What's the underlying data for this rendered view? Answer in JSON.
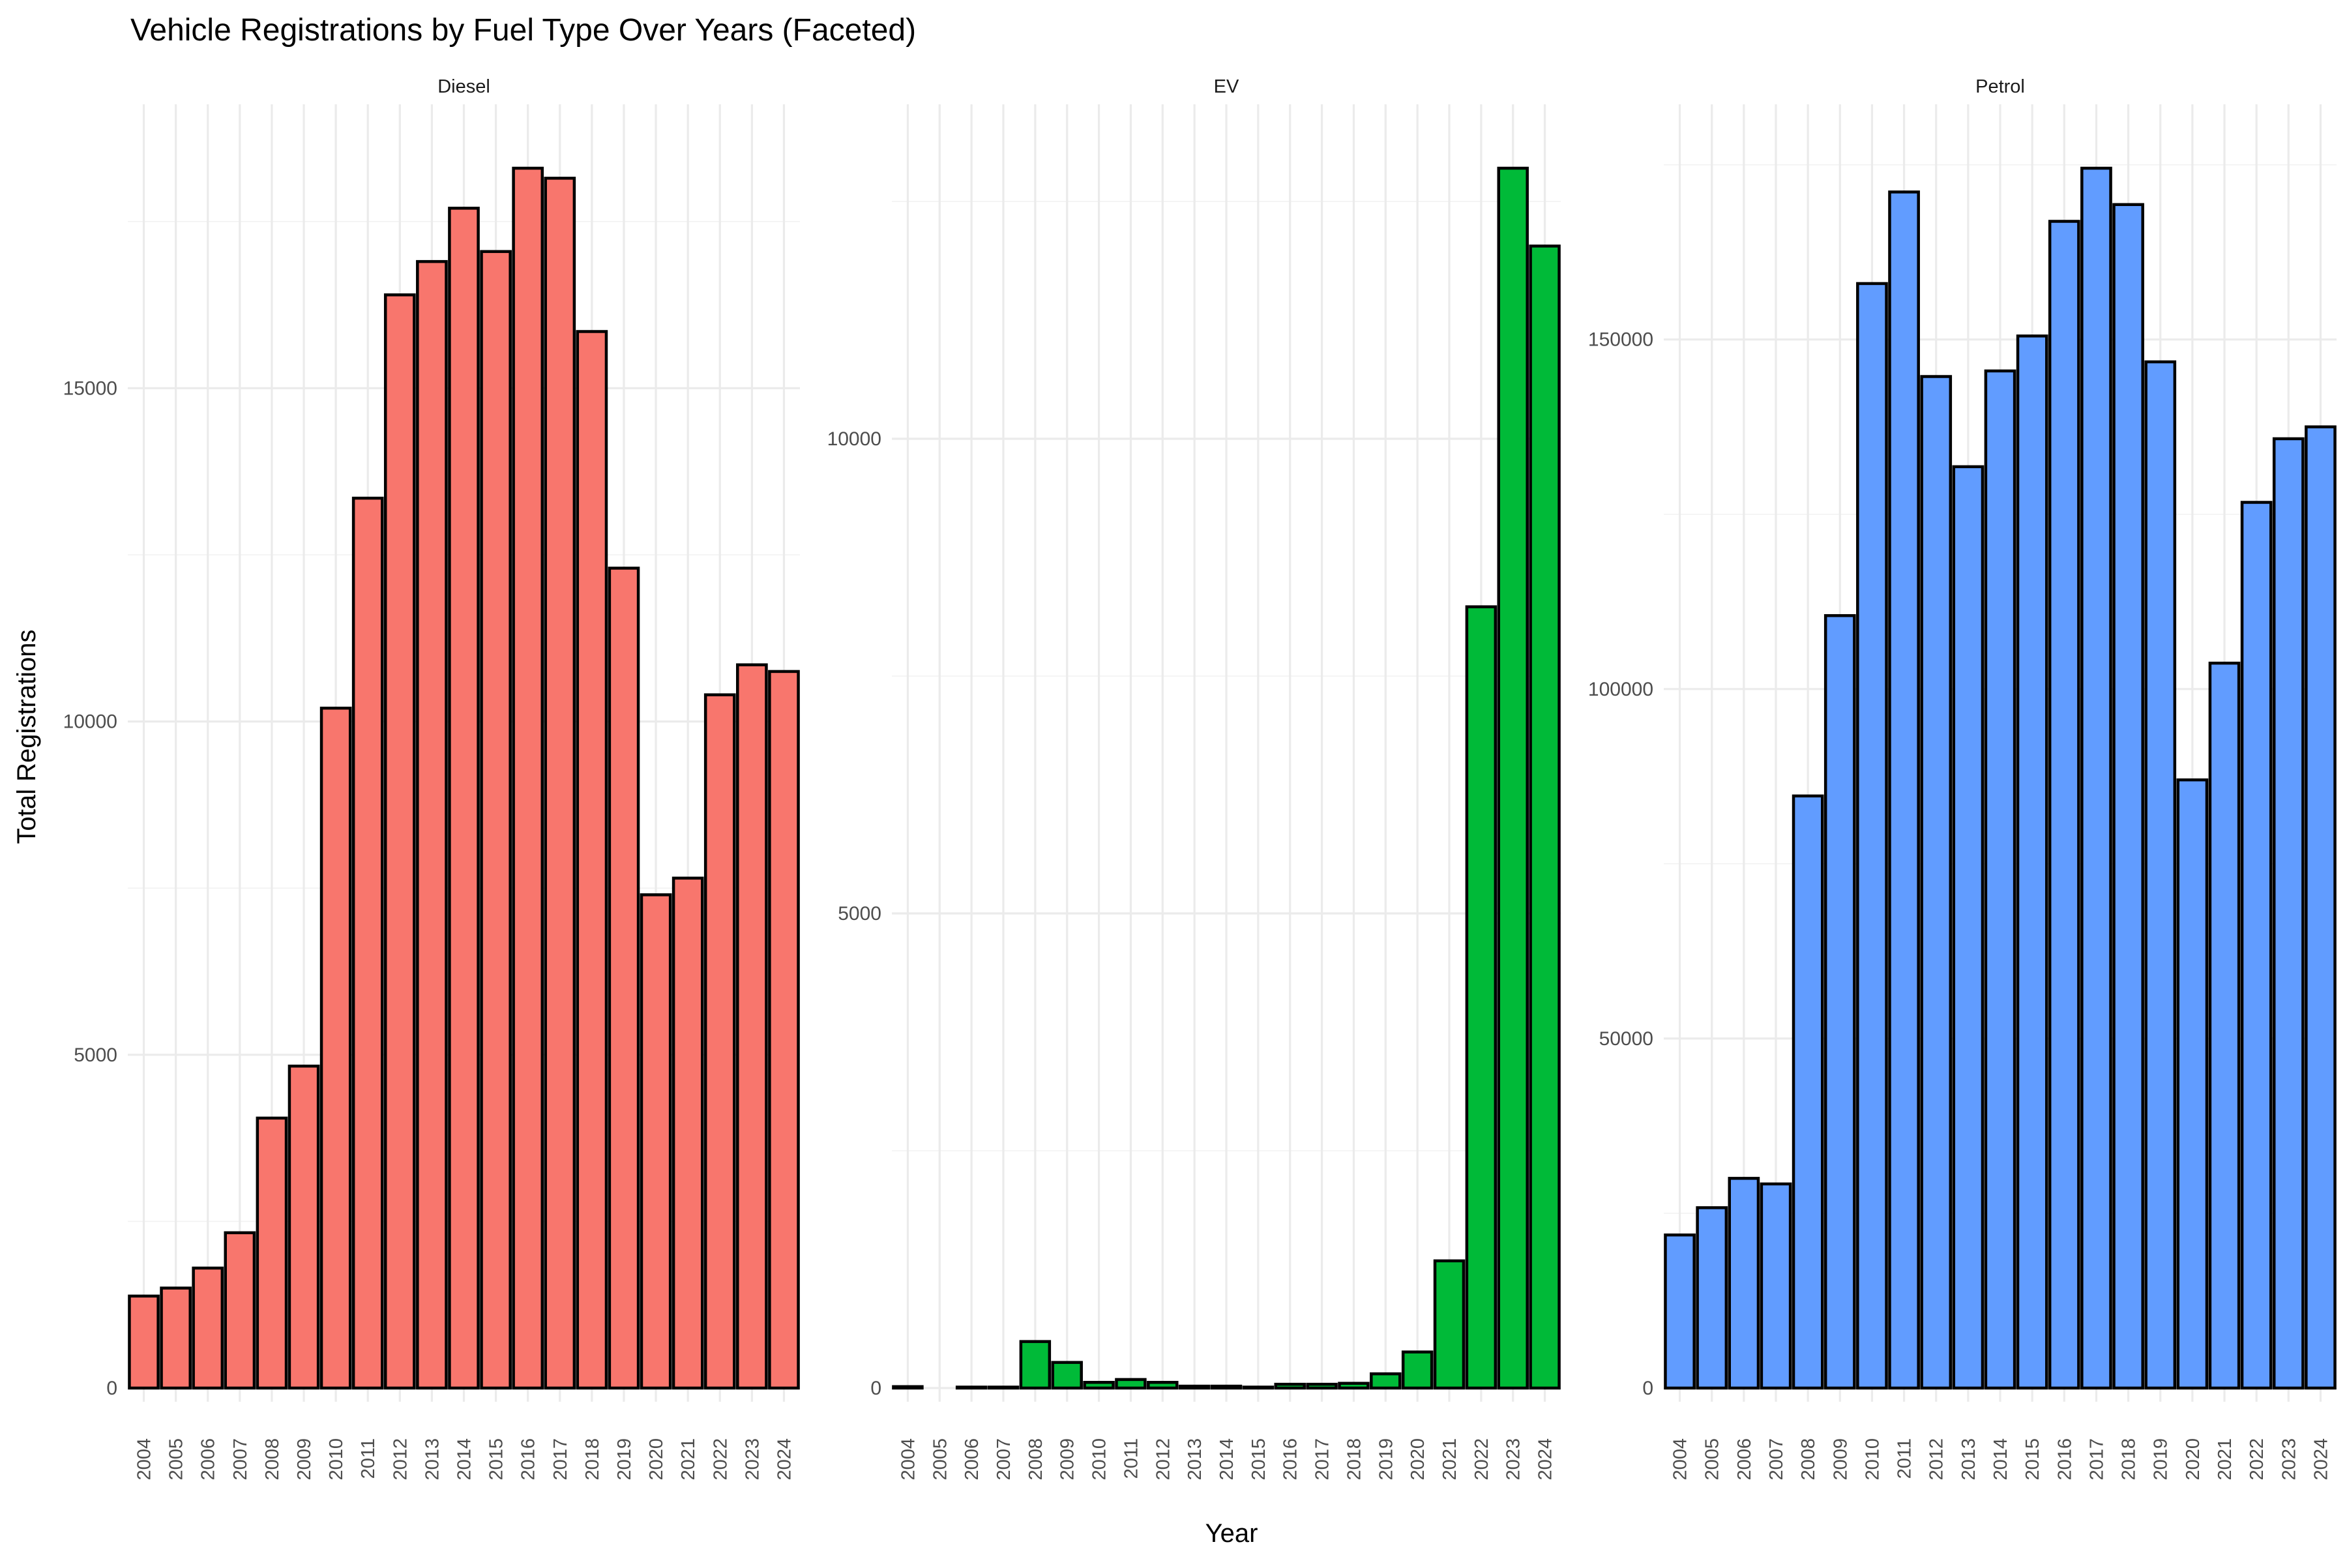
{
  "chart_data": {
    "type": "bar",
    "title": "Vehicle Registrations by Fuel Type Over Years (Faceted)",
    "xlabel": "Year",
    "ylabel": "Total Registrations",
    "categories": [
      "2004",
      "2005",
      "2006",
      "2007",
      "2008",
      "2009",
      "2010",
      "2011",
      "2012",
      "2013",
      "2014",
      "2015",
      "2016",
      "2017",
      "2018",
      "2019",
      "2020",
      "2021",
      "2022",
      "2023",
      "2024"
    ],
    "grid": true,
    "legend": "none",
    "facets": [
      {
        "name": "Diesel",
        "color": "#F8766D",
        "ylim": [
          0,
          18300
        ],
        "yticks": [
          0,
          5000,
          10000,
          15000
        ],
        "values": [
          1380,
          1500,
          1800,
          2330,
          4050,
          4830,
          10200,
          13350,
          16400,
          16900,
          17700,
          17050,
          18300,
          18150,
          15850,
          12300,
          7400,
          7650,
          10400,
          10850,
          10750
        ]
      },
      {
        "name": "EV",
        "color": "#00BA38",
        "ylim": [
          0,
          12850
        ],
        "yticks": [
          0,
          5000,
          10000
        ],
        "values": [
          15,
          0,
          10,
          10,
          490,
          270,
          60,
          90,
          60,
          20,
          20,
          10,
          40,
          40,
          50,
          150,
          380,
          1340,
          8230,
          12850,
          12030
        ]
      },
      {
        "name": "Petrol",
        "color": "#619CFF",
        "ylim": [
          0,
          174500
        ],
        "yticks": [
          0,
          50000,
          100000,
          150000
        ],
        "values": [
          21900,
          25800,
          30000,
          29200,
          84700,
          110500,
          158000,
          171100,
          144700,
          131800,
          145500,
          150500,
          166900,
          174500,
          169300,
          146800,
          87000,
          103700,
          126700,
          135800,
          137500
        ]
      }
    ]
  }
}
